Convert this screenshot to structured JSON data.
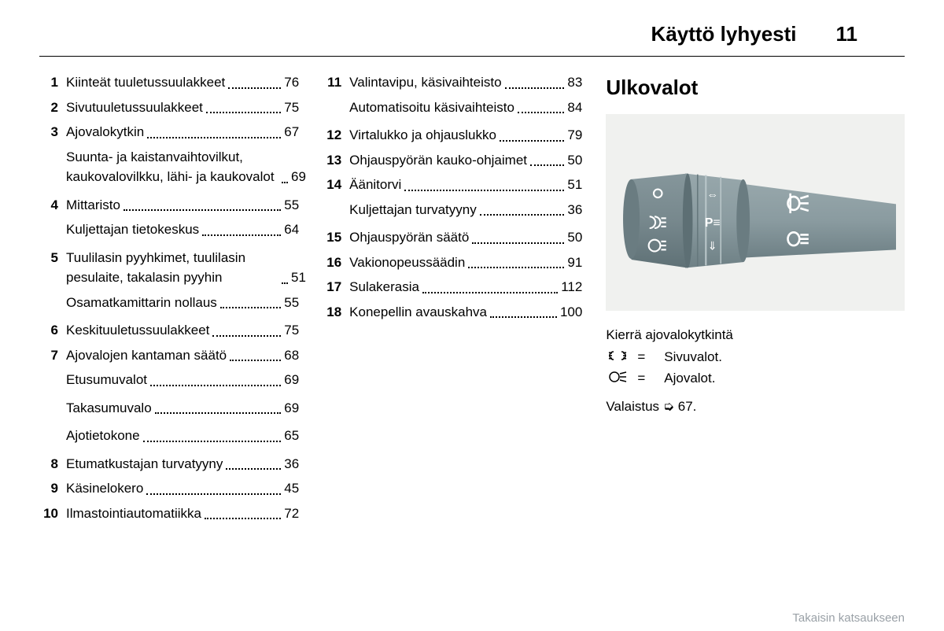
{
  "header": {
    "title": "Käyttö lyhyesti",
    "page": "11"
  },
  "col1": [
    {
      "n": "1",
      "t": "Kiinteät tuuletussuulakkeet",
      "p": "76"
    },
    {
      "n": "2",
      "t": "Sivutuuletussuulakkeet",
      "p": "75"
    },
    {
      "n": "3",
      "t": "Ajovalokytkin",
      "p": "67"
    },
    {
      "n": "",
      "t": "Suunta- ja kaistanvaihtovilkut, kaukovalovilkku, lähi- ja kaukovalot",
      "p": "69"
    },
    {
      "n": "4",
      "t": "Mittaristo",
      "p": "55"
    },
    {
      "n": "",
      "t": "Kuljettajan tietokeskus",
      "p": "64"
    },
    {
      "n": "5",
      "t": "Tuulilasin pyyhkimet, tuulilasin pesulaite, takalasin pyyhin",
      "p": "51"
    },
    {
      "n": "",
      "t": "Osamatkamittarin nollaus",
      "p": "55"
    },
    {
      "n": "6",
      "t": "Keskituuletussuulakkeet",
      "p": "75"
    },
    {
      "n": "7",
      "t": "Ajovalojen kantaman säätö",
      "p": "68"
    },
    {
      "n": "",
      "t": "Etusumuvalot",
      "p": "69"
    },
    {
      "n": "",
      "t": "Takasumuvalo",
      "p": "69"
    },
    {
      "n": "",
      "t": "Ajotietokone",
      "p": "65"
    },
    {
      "n": "8",
      "t": "Etumatkustajan turvatyyny",
      "p": "36"
    },
    {
      "n": "9",
      "t": "Käsinelokero",
      "p": "45"
    },
    {
      "n": "10",
      "t": "Ilmastointiautomatiikka",
      "p": "72"
    }
  ],
  "col2": [
    {
      "n": "11",
      "t": "Valintavipu, käsivaihteisto",
      "p": "83"
    },
    {
      "n": "",
      "t": "Automatisoitu käsivaihteisto",
      "p": "84"
    },
    {
      "n": "12",
      "t": "Virtalukko ja ohjauslukko",
      "p": "79"
    },
    {
      "n": "13",
      "t": "Ohjauspyörän kauko-ohjaimet",
      "p": "50"
    },
    {
      "n": "14",
      "t": "Äänitorvi",
      "p": "51"
    },
    {
      "n": "",
      "t": "Kuljettajan turvatyyny",
      "p": "36"
    },
    {
      "n": "15",
      "t": "Ohjauspyörän säätö",
      "p": "50"
    },
    {
      "n": "16",
      "t": "Vakionopeussäädin",
      "p": "91"
    },
    {
      "n": "17",
      "t": "Sulakerasia",
      "p": "112"
    },
    {
      "n": "18",
      "t": "Konepellin avauskahva",
      "p": "100"
    }
  ],
  "section": {
    "title": "Ulkovalot",
    "instruction": "Kierrä ajovalokytkintä",
    "legend": [
      {
        "sym": "sidelamp",
        "eq": "=",
        "label": "Sivuvalot."
      },
      {
        "sym": "headlamp",
        "eq": "=",
        "label": "Ajovalot."
      }
    ],
    "ref_prefix": "Valaistus",
    "ref_page": "67."
  },
  "illustration": {
    "bg": "#f0f1ef",
    "lever_main": "#8a9ba0",
    "lever_cap": "#77888d",
    "lever_highlight": "#a6b5b9",
    "icon_color": "#ffffff"
  },
  "footer": "Takaisin katsaukseen"
}
